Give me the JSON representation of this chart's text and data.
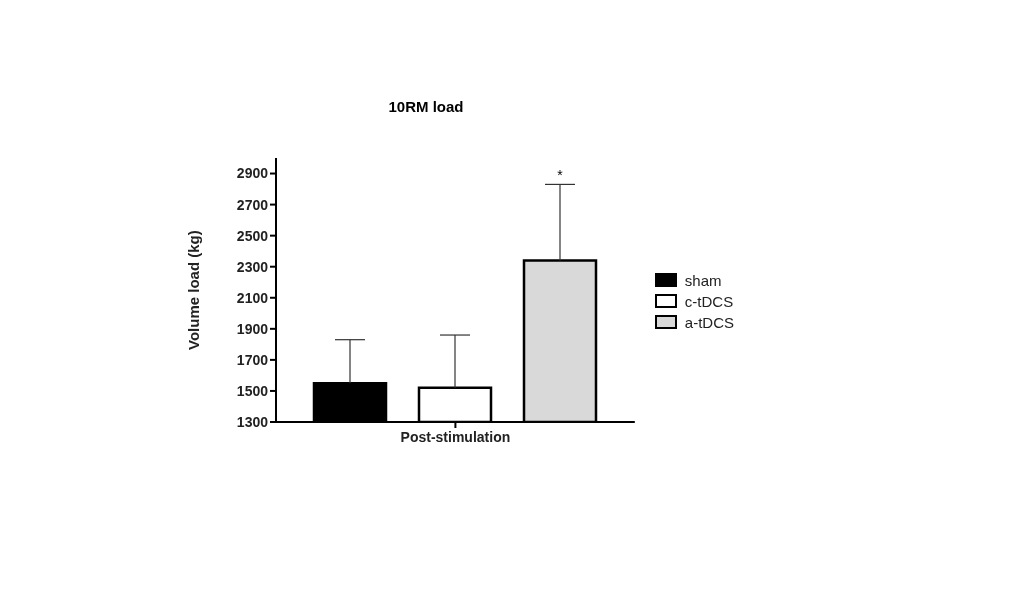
{
  "chart_data": {
    "type": "bar",
    "title": "10RM load",
    "xlabel": "Post-stimulation",
    "ylabel": "Volume load (kg)",
    "categories": [
      null
    ],
    "series": [
      {
        "name": "sham",
        "color": "#000000",
        "values": [
          1550
        ],
        "errors": [
          [
            1550,
            1830
          ]
        ]
      },
      {
        "name": "c-tDCS",
        "color": "#ffffff",
        "values": [
          1520
        ],
        "errors": [
          [
            1520,
            1860
          ]
        ]
      },
      {
        "name": "a-tDCS",
        "color": "#d9d9d9",
        "values": [
          2340
        ],
        "errors": [
          [
            2340,
            2830
          ]
        ]
      }
    ],
    "ylim": [
      1300,
      3000
    ],
    "yticks": [
      1300,
      1500,
      1700,
      1900,
      2100,
      2300,
      2500,
      2700,
      2900
    ],
    "annotations": [
      {
        "text": "*",
        "y": 2830
      }
    ],
    "grid": false,
    "legend": "right"
  }
}
